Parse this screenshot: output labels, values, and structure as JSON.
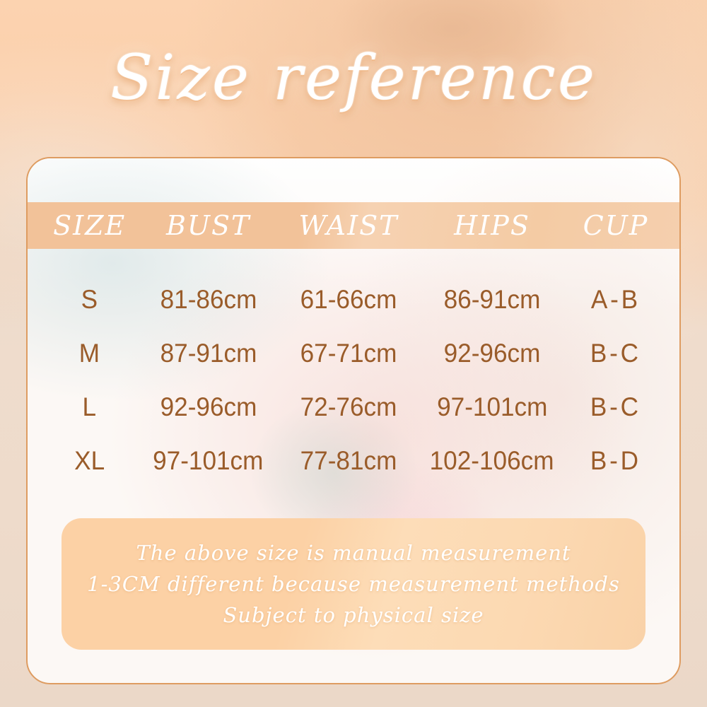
{
  "title": "Size reference",
  "chart_data": {
    "type": "table",
    "title": "Size reference",
    "columns": [
      "SIZE",
      "BUST",
      "WAIST",
      "HIPS",
      "CUP"
    ],
    "rows": [
      [
        "S",
        "81-86cm",
        "61-66cm",
        "86-91cm",
        "A-B"
      ],
      [
        "M",
        "87-91cm",
        "67-71cm",
        "92-96cm",
        "B-C"
      ],
      [
        "L",
        "92-96cm",
        "72-76cm",
        "97-101cm",
        "B-C"
      ],
      [
        "XL",
        "97-101cm",
        "77-81cm",
        "102-106cm",
        "B-D"
      ]
    ],
    "units": "cm"
  },
  "note": {
    "lines": [
      "The above size is manual measurement",
      "1-3CM different because  measurement methods",
      "Subject to physical size"
    ]
  },
  "colors": {
    "background_top": "#fcd3b0",
    "background_bottom": "#ebd8c8",
    "header_band": "#f2c299",
    "card_border": "#de9c61",
    "card_background": "#fcf8f5",
    "note_background": "#fcd1a5",
    "table_text_brown": "#9a5c2a",
    "title_text": "#ffffff",
    "title_glow": "#e0965a"
  }
}
